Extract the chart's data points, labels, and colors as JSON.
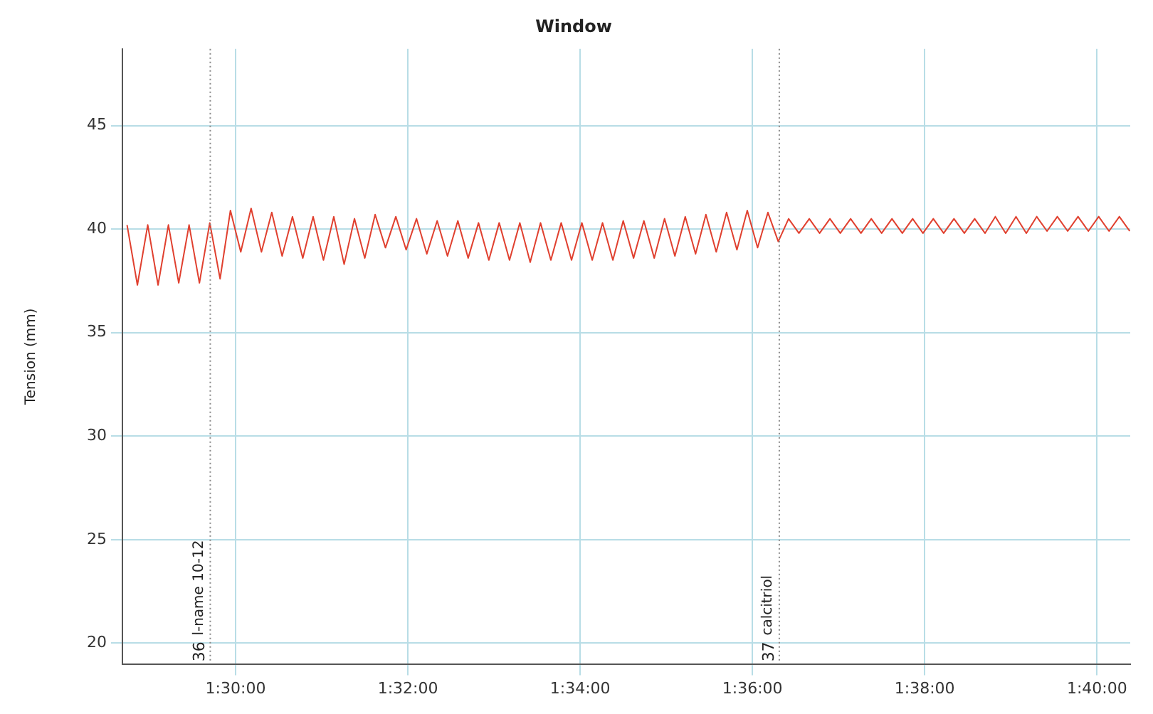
{
  "chart_data": {
    "type": "line",
    "title": "Window",
    "ylabel": "Tension (mm)",
    "xlim": [
      1.4781,
      1.6731
    ],
    "ylim": [
      19,
      48.7
    ],
    "xticks": [
      {
        "value": 1.5,
        "label": "1:30:00"
      },
      {
        "value": 1.53333,
        "label": "1:32:00"
      },
      {
        "value": 1.56667,
        "label": "1:34:00"
      },
      {
        "value": 1.6,
        "label": "1:36:00"
      },
      {
        "value": 1.63333,
        "label": "1:38:00"
      },
      {
        "value": 1.66667,
        "label": "1:40:00"
      }
    ],
    "yticks": [
      20,
      25,
      30,
      35,
      40,
      45
    ],
    "grid": true,
    "legend": false,
    "marker": "none",
    "line_style": "solid",
    "x": [
      1.479,
      1.481,
      1.483,
      1.485,
      1.487,
      1.489,
      1.491,
      1.493,
      1.495,
      1.497,
      1.499,
      1.501,
      1.503,
      1.505,
      1.507,
      1.509,
      1.511,
      1.513,
      1.515,
      1.517,
      1.519,
      1.521,
      1.523,
      1.525,
      1.527,
      1.529,
      1.531,
      1.533,
      1.535,
      1.537,
      1.539,
      1.541,
      1.543,
      1.545,
      1.547,
      1.549,
      1.551,
      1.553,
      1.555,
      1.557,
      1.559,
      1.561,
      1.563,
      1.565,
      1.567,
      1.569,
      1.571,
      1.573,
      1.575,
      1.577,
      1.579,
      1.581,
      1.583,
      1.585,
      1.587,
      1.589,
      1.591,
      1.593,
      1.595,
      1.597,
      1.599,
      1.601,
      1.603,
      1.605,
      1.607,
      1.609,
      1.611,
      1.613,
      1.615,
      1.617,
      1.619,
      1.621,
      1.623,
      1.625,
      1.627,
      1.629,
      1.631,
      1.633,
      1.635,
      1.637,
      1.639,
      1.641,
      1.643,
      1.645,
      1.647,
      1.649,
      1.651,
      1.653,
      1.655,
      1.657,
      1.659,
      1.661,
      1.663,
      1.665,
      1.667,
      1.669,
      1.671,
      1.673
    ],
    "series": [
      {
        "color": "#e0402f",
        "values": [
          40.2,
          37.3,
          40.2,
          37.3,
          40.2,
          37.4,
          40.2,
          37.4,
          40.3,
          37.6,
          40.9,
          38.9,
          41.0,
          38.9,
          40.8,
          38.7,
          40.6,
          38.6,
          40.6,
          38.5,
          40.6,
          38.3,
          40.5,
          38.6,
          40.7,
          39.1,
          40.6,
          39.0,
          40.5,
          38.8,
          40.4,
          38.7,
          40.4,
          38.6,
          40.3,
          38.5,
          40.3,
          38.5,
          40.3,
          38.4,
          40.3,
          38.5,
          40.3,
          38.5,
          40.3,
          38.5,
          40.3,
          38.5,
          40.4,
          38.6,
          40.4,
          38.6,
          40.5,
          38.7,
          40.6,
          38.8,
          40.7,
          38.9,
          40.8,
          39.0,
          40.9,
          39.1,
          40.8,
          39.4,
          40.5,
          39.8,
          40.5,
          39.8,
          40.5,
          39.8,
          40.5,
          39.8,
          40.5,
          39.8,
          40.5,
          39.8,
          40.5,
          39.8,
          40.5,
          39.8,
          40.5,
          39.8,
          40.5,
          39.8,
          40.6,
          39.8,
          40.6,
          39.8,
          40.6,
          39.9,
          40.6,
          39.9,
          40.6,
          39.9,
          40.6,
          39.9,
          40.6,
          39.9
        ]
      }
    ],
    "ref_lines": [
      {
        "axis": "x",
        "value": 1.4951,
        "label": "l-name 10-12",
        "color": "#888888",
        "line_style": "dotted"
      },
      {
        "axis": "x",
        "value": 1.6052,
        "label": "calcitriol",
        "color": "#888888",
        "line_style": "dotted"
      }
    ],
    "annotations": [
      {
        "text": "36",
        "x": 1.4951,
        "y": 19.6
      },
      {
        "text": "37",
        "x": 1.6052,
        "y": 19.6
      }
    ]
  }
}
